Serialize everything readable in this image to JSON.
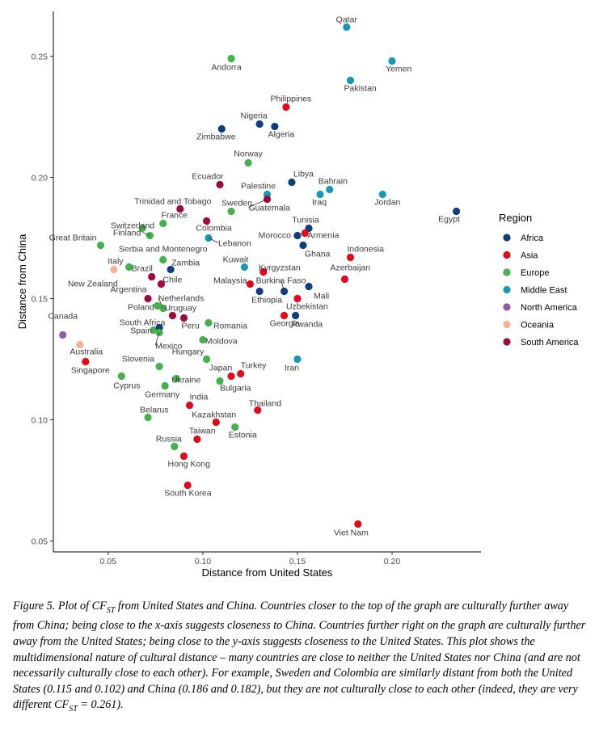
{
  "chart_data": {
    "type": "scatter",
    "xlabel": "Distance from United States",
    "ylabel": "Distance from China",
    "xlim": [
      0.021,
      0.247
    ],
    "ylim": [
      0.0455,
      0.2685
    ],
    "xticks": [
      0.05,
      0.1,
      0.15,
      0.2
    ],
    "xtick_labels": [
      "0.05",
      "0.10",
      "0.15",
      "0.20"
    ],
    "yticks": [
      0.05,
      0.1,
      0.15,
      0.2,
      0.25
    ],
    "ytick_labels": [
      "0.05",
      "0.10",
      "0.15",
      "0.20",
      "0.25"
    ],
    "grid": false,
    "legend": {
      "title": "Region",
      "position": "right",
      "entries": [
        {
          "name": "Africa",
          "color": "#0d3e82"
        },
        {
          "name": "Asia",
          "color": "#e3091a"
        },
        {
          "name": "Europe",
          "color": "#41b34a"
        },
        {
          "name": "Middle East",
          "color": "#1599b4"
        },
        {
          "name": "North America",
          "color": "#8e5ba6"
        },
        {
          "name": "Oceania",
          "color": "#f7b196"
        },
        {
          "name": "South America",
          "color": "#a1093c"
        }
      ]
    },
    "points": [
      {
        "label": "Qatar",
        "region": "Middle East",
        "x": 0.176,
        "y": 0.262
      },
      {
        "label": "Andorra",
        "region": "Europe",
        "x": 0.115,
        "y": 0.249
      },
      {
        "label": "Yemen",
        "region": "Middle East",
        "x": 0.2,
        "y": 0.248
      },
      {
        "label": "Pakistan",
        "region": "Middle East",
        "x": 0.178,
        "y": 0.24
      },
      {
        "label": "Philippines",
        "region": "Asia",
        "x": 0.144,
        "y": 0.229
      },
      {
        "label": "Nigeria",
        "region": "Africa",
        "x": 0.13,
        "y": 0.222
      },
      {
        "label": "Algeria",
        "region": "Africa",
        "x": 0.138,
        "y": 0.221
      },
      {
        "label": "Zimbabwe",
        "region": "Africa",
        "x": 0.11,
        "y": 0.22
      },
      {
        "label": "Norway",
        "region": "Europe",
        "x": 0.124,
        "y": 0.206
      },
      {
        "label": "Libya",
        "region": "Africa",
        "x": 0.147,
        "y": 0.198
      },
      {
        "label": "Ecuador",
        "region": "South America",
        "x": 0.109,
        "y": 0.197
      },
      {
        "label": "Bahrain",
        "region": "Middle East",
        "x": 0.167,
        "y": 0.195
      },
      {
        "label": "Iraq",
        "region": "Middle East",
        "x": 0.162,
        "y": 0.193
      },
      {
        "label": "Jordan",
        "region": "Middle East",
        "x": 0.195,
        "y": 0.193
      },
      {
        "label": "Palestine",
        "region": "Middle East",
        "x": 0.134,
        "y": 0.193
      },
      {
        "label": "Guatemala",
        "region": "South America",
        "x": 0.134,
        "y": 0.191
      },
      {
        "label": "Trinidad and Tobago",
        "region": "South America",
        "x": 0.088,
        "y": 0.187
      },
      {
        "label": "Sweden",
        "region": "Europe",
        "x": 0.115,
        "y": 0.186
      },
      {
        "label": "Egypt",
        "region": "Africa",
        "x": 0.234,
        "y": 0.186
      },
      {
        "label": "France",
        "region": "Europe",
        "x": 0.079,
        "y": 0.181
      },
      {
        "label": "Colombia",
        "region": "South America",
        "x": 0.102,
        "y": 0.182
      },
      {
        "label": "Switzerland",
        "region": "Europe",
        "x": 0.068,
        "y": 0.179
      },
      {
        "label": "Tunisia",
        "region": "Africa",
        "x": 0.156,
        "y": 0.179
      },
      {
        "label": "Armenia",
        "region": "Asia",
        "x": 0.154,
        "y": 0.177
      },
      {
        "label": "Finland",
        "region": "Europe",
        "x": 0.072,
        "y": 0.176
      },
      {
        "label": "Morocco",
        "region": "Africa",
        "x": 0.15,
        "y": 0.176
      },
      {
        "label": "Lebanon",
        "region": "Middle East",
        "x": 0.103,
        "y": 0.175
      },
      {
        "label": "Great Britain",
        "region": "Europe",
        "x": 0.046,
        "y": 0.172
      },
      {
        "label": "Ghana",
        "region": "Africa",
        "x": 0.153,
        "y": 0.172
      },
      {
        "label": "Serbia and Montenegro",
        "region": "Europe",
        "x": 0.079,
        "y": 0.166
      },
      {
        "label": "Indonesia",
        "region": "Asia",
        "x": 0.178,
        "y": 0.167
      },
      {
        "label": "Italy",
        "region": "Oceania",
        "x": 0.053,
        "y": 0.162
      },
      {
        "label": "Brazil",
        "region": "Europe",
        "x": 0.061,
        "y": 0.163
      },
      {
        "label": "Kuwait",
        "region": "Middle East",
        "x": 0.122,
        "y": 0.163
      },
      {
        "label": "Zambia",
        "region": "Africa",
        "x": 0.083,
        "y": 0.162
      },
      {
        "label": "Kyrgyzstan",
        "region": "Asia",
        "x": 0.132,
        "y": 0.161
      },
      {
        "label": "New Zealand",
        "region": "South America",
        "x": 0.073,
        "y": 0.159
      },
      {
        "label": "Chile",
        "region": "South America",
        "x": 0.078,
        "y": 0.156
      },
      {
        "label": "Azerbaijan",
        "region": "Asia",
        "x": 0.175,
        "y": 0.158
      },
      {
        "label": "Malaysia",
        "region": "Asia",
        "x": 0.125,
        "y": 0.156
      },
      {
        "label": "Burkina Faso",
        "region": "Africa",
        "x": 0.143,
        "y": 0.153
      },
      {
        "label": "Mali",
        "region": "Africa",
        "x": 0.156,
        "y": 0.155
      },
      {
        "label": "Argentina",
        "region": "South America",
        "x": 0.071,
        "y": 0.15
      },
      {
        "label": "Ethiopia",
        "region": "Africa",
        "x": 0.13,
        "y": 0.153
      },
      {
        "label": "Uzbekistan",
        "region": "Asia",
        "x": 0.15,
        "y": 0.15
      },
      {
        "label": "Netherlands",
        "region": "Europe",
        "x": 0.079,
        "y": 0.146
      },
      {
        "label": "Poland",
        "region": "Europe",
        "x": 0.076,
        "y": 0.147
      },
      {
        "label": "Uruguay",
        "region": "South America",
        "x": 0.084,
        "y": 0.143
      },
      {
        "label": "Peru",
        "region": "South America",
        "x": 0.09,
        "y": 0.142
      },
      {
        "label": "Georgia",
        "region": "Asia",
        "x": 0.143,
        "y": 0.143
      },
      {
        "label": "Rwanda",
        "region": "Africa",
        "x": 0.149,
        "y": 0.143
      },
      {
        "label": "South Africa",
        "region": "Europe",
        "x": 0.074,
        "y": 0.137
      },
      {
        "label": "Romania",
        "region": "Europe",
        "x": 0.103,
        "y": 0.14
      },
      {
        "label": "Spain",
        "region": "Africa",
        "x": 0.077,
        "y": 0.138
      },
      {
        "label": "Canada",
        "region": "North America",
        "x": 0.026,
        "y": 0.135
      },
      {
        "label": "Mexico",
        "region": "Europe",
        "x": 0.077,
        "y": 0.136
      },
      {
        "label": "Moldova",
        "region": "Europe",
        "x": 0.1,
        "y": 0.133
      },
      {
        "label": "Australia",
        "region": "Oceania",
        "x": 0.035,
        "y": 0.131
      },
      {
        "label": "Hungary",
        "region": "Europe",
        "x": 0.102,
        "y": 0.125
      },
      {
        "label": "Iran",
        "region": "Middle East",
        "x": 0.15,
        "y": 0.125
      },
      {
        "label": "Slovenia",
        "region": "Europe",
        "x": 0.077,
        "y": 0.122
      },
      {
        "label": "Singapore",
        "region": "Asia",
        "x": 0.038,
        "y": 0.124
      },
      {
        "label": "Japan",
        "region": "Asia",
        "x": 0.115,
        "y": 0.118
      },
      {
        "label": "Turkey",
        "region": "Asia",
        "x": 0.12,
        "y": 0.119
      },
      {
        "label": "Ukraine",
        "region": "Europe",
        "x": 0.086,
        "y": 0.117
      },
      {
        "label": "Cyprus",
        "region": "Europe",
        "x": 0.057,
        "y": 0.118
      },
      {
        "label": "Bulgaria",
        "region": "Europe",
        "x": 0.109,
        "y": 0.116
      },
      {
        "label": "Germany",
        "region": "Europe",
        "x": 0.08,
        "y": 0.114
      },
      {
        "label": "India",
        "region": "Asia",
        "x": 0.093,
        "y": 0.106
      },
      {
        "label": "Thailand",
        "region": "Asia",
        "x": 0.129,
        "y": 0.104
      },
      {
        "label": "Belarus",
        "region": "Europe",
        "x": 0.071,
        "y": 0.101
      },
      {
        "label": "Kazakhstan",
        "region": "Asia",
        "x": 0.107,
        "y": 0.099
      },
      {
        "label": "Estonia",
        "region": "Europe",
        "x": 0.117,
        "y": 0.097
      },
      {
        "label": "Taiwan",
        "region": "Asia",
        "x": 0.097,
        "y": 0.092
      },
      {
        "label": "Russia",
        "region": "Europe",
        "x": 0.085,
        "y": 0.089
      },
      {
        "label": "Hong Kong",
        "region": "Asia",
        "x": 0.09,
        "y": 0.085
      },
      {
        "label": "South Korea",
        "region": "Asia",
        "x": 0.092,
        "y": 0.073
      },
      {
        "label": "Viet Nam",
        "region": "Asia",
        "x": 0.182,
        "y": 0.057
      }
    ]
  },
  "caption": {
    "figure_label": "Figure 5.",
    "text_before_sub": "Plot of CF",
    "sub": "ST",
    "text_after_sub": " from United States and China. Countries closer to the top of the graph are culturally further away from China; being close to the x-axis suggests closeness to China. Countries further right on the graph are culturally further away from the United States; being close to the y-axis suggests closeness to the United States.  This plot shows the multidimensional nature of cultural distance – many countries are close to neither the United States nor China (and are not necessarily culturally close to each other). For example, Sweden and Colombia are similarly distant from both the United States (0.115 and 0.102) and China (0.186 and 0.182), but they are not culturally close to each other (indeed, they are very different CF",
    "sub2": "ST",
    "text_end": " = 0.261)."
  }
}
